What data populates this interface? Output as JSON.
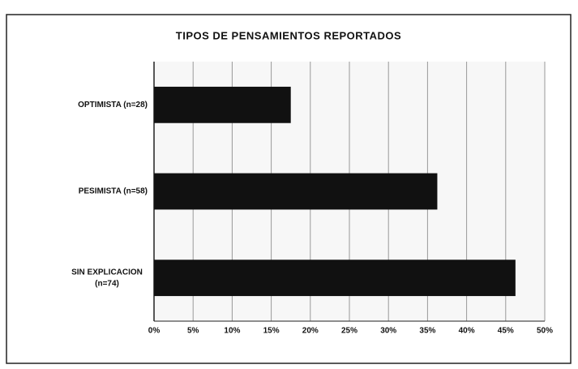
{
  "chart_data": {
    "type": "bar",
    "orientation": "horizontal",
    "title": "TIPOS DE PENSAMIENTOS REPORTADOS",
    "categories": [
      "OPTIMISTA (n=28)",
      "PESIMISTA (n=58)",
      "SIN EXPLICACION (n=74)"
    ],
    "values": [
      17.5,
      36.25,
      46.25
    ],
    "color": "#111111",
    "xlim": [
      0,
      50
    ],
    "xticks": [
      {
        "value": 0,
        "label": "0%"
      },
      {
        "value": 5,
        "label": "5%"
      },
      {
        "value": 10,
        "label": "10%"
      },
      {
        "value": 15,
        "label": "15%"
      },
      {
        "value": 20,
        "label": "20%"
      },
      {
        "value": 25,
        "label": "25%"
      },
      {
        "value": 30,
        "label": "30%"
      },
      {
        "value": 35,
        "label": "35%"
      },
      {
        "value": 40,
        "label": "40%"
      },
      {
        "value": 45,
        "label": "45%"
      },
      {
        "value": 50,
        "label": "50%"
      }
    ],
    "grid": true
  }
}
